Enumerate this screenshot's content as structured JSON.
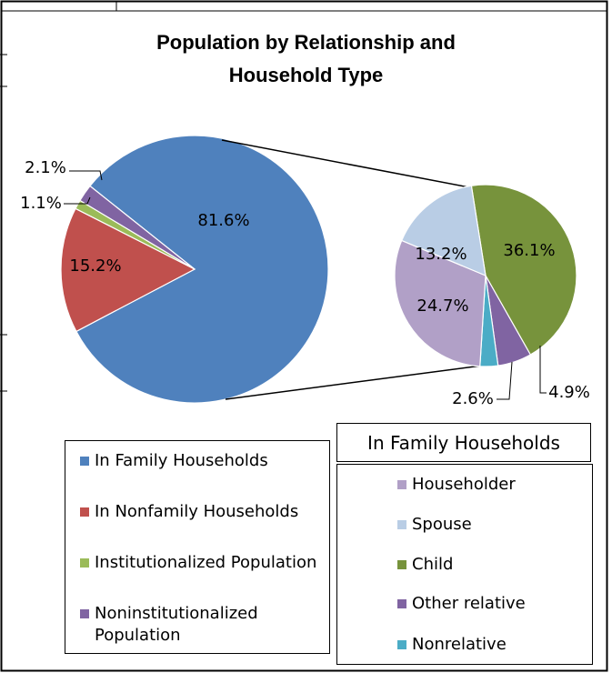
{
  "chart_data": [
    {
      "type": "pie",
      "title": "Population by Relationship and Household Type",
      "title_lines": [
        "Population by Relationship and",
        "Household Type"
      ],
      "slices": [
        {
          "label": "In Family Households",
          "value": 81.6,
          "data_label": "81.6%",
          "color": "#4F81BD"
        },
        {
          "label": "In Nonfamily Households",
          "value": 15.2,
          "data_label": "15.2%",
          "color": "#C0504D"
        },
        {
          "label": "Institutionalized Population",
          "value": 1.1,
          "data_label": "1.1%",
          "color": "#9BBB59"
        },
        {
          "label": "Noninstitutionalized Population",
          "value": 2.1,
          "data_label": "2.1%",
          "color": "#8064A2"
        }
      ],
      "legend_position": "bottom-left"
    },
    {
      "type": "pie",
      "title": "In Family Households",
      "slices": [
        {
          "label": "Householder",
          "value": 24.7,
          "data_label": "24.7%",
          "color": "#B1A0C7"
        },
        {
          "label": "Spouse",
          "value": 13.2,
          "data_label": "13.2%",
          "color": "#B9CDE5"
        },
        {
          "label": "Child",
          "value": 36.1,
          "data_label": "36.1%",
          "color": "#77933C"
        },
        {
          "label": "Other relative",
          "value": 4.9,
          "data_label": "4.9%",
          "color": "#8064A2"
        },
        {
          "label": "Nonrelative",
          "value": 2.6,
          "data_label": "2.6%",
          "color": "#4BACC6"
        }
      ],
      "legend_position": "bottom-right"
    }
  ],
  "legend_main": [
    {
      "label": "In Family Households",
      "color": "#4F81BD"
    },
    {
      "label": "In Nonfamily Households",
      "color": "#C0504D"
    },
    {
      "label": "Institutionalized Population",
      "color": "#9BBB59"
    },
    {
      "label": "Noninstitutionalized Population",
      "color": "#8064A2"
    }
  ],
  "legend_sub_header": "In Family Households",
  "legend_sub": [
    {
      "label": "Householder",
      "color": "#B1A0C7"
    },
    {
      "label": "Spouse",
      "color": "#B9CDE5"
    },
    {
      "label": "Child",
      "color": "#77933C"
    },
    {
      "label": "Other relative",
      "color": "#8064A2"
    },
    {
      "label": "Nonrelative",
      "color": "#4BACC6"
    }
  ]
}
